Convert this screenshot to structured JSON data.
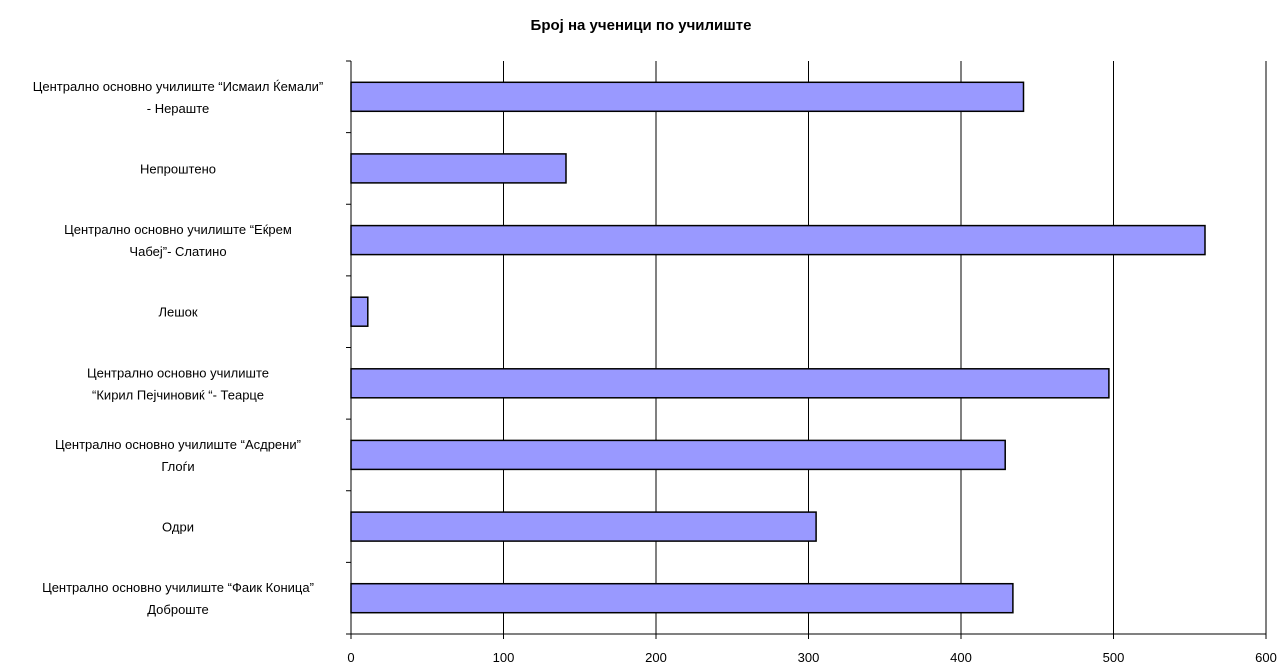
{
  "chart_data": {
    "type": "bar",
    "orientation": "horizontal",
    "title": "Број на ученици по училиште",
    "xlabel": "",
    "ylabel": "",
    "xlim": [
      0,
      600
    ],
    "x_ticks": [
      "0",
      "100",
      "200",
      "300",
      "400",
      "500",
      "600"
    ],
    "grid": "vertical",
    "bar_color": "#9999ff",
    "bar_edge_color": "#000000",
    "categories": [
      {
        "lines": [
          "Централно основно училиште “Исмаил Ќемали”",
          "- Нераште"
        ]
      },
      {
        "lines": [
          "Непроштено"
        ]
      },
      {
        "lines": [
          "Централно основно училиште “Еќрем",
          "Чабеј”- Слатино"
        ]
      },
      {
        "lines": [
          "Лешок"
        ]
      },
      {
        "lines": [
          "Централно основно училиште",
          "“Кирил Пејчиновиќ “- Теарце"
        ]
      },
      {
        "lines": [
          "Централно основно училиште “Асдрени”",
          "Глоѓи"
        ]
      },
      {
        "lines": [
          "Одри"
        ]
      },
      {
        "lines": [
          "Централно основно училиште “Фаик Коница”",
          "Доброште"
        ]
      }
    ],
    "values": [
      441,
      141,
      560,
      11,
      497,
      429,
      305,
      434
    ]
  }
}
